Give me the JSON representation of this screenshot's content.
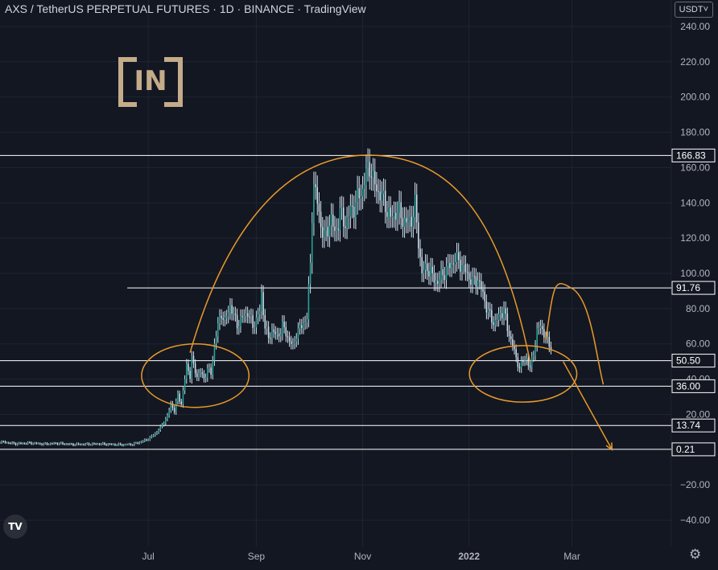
{
  "header": {
    "title": "AXS / TetherUS PERPETUAL FUTURES · 1D · BINANCE · TradingView",
    "currency_label": "USDT˅"
  },
  "logo": {
    "text": "[IN]",
    "color": "#c4ab8a"
  },
  "tv_logo": {
    "text": "TV"
  },
  "icons": {
    "settings": "gear-icon"
  },
  "colors": {
    "background": "#131722",
    "grid": "#1e2433",
    "candle": "#cfe2ef",
    "candle_up_accent": "#26a69a",
    "level_line": "#ffffff",
    "drawing": "#e89a2a",
    "axis_text": "#b2b5be"
  },
  "chart_data": {
    "type": "candlestick",
    "title": "AXS / TetherUS PERPETUAL FUTURES · 1D · BINANCE · TradingView",
    "ylim": [
      -55,
      255
    ],
    "y_ticks": [
      "240.00",
      "220.00",
      "200.00",
      "180.00",
      "160.00",
      "140.00",
      "120.00",
      "100.00",
      "80.00",
      "60.00",
      "40.00",
      "20.00",
      "−20.00",
      "−40.00"
    ],
    "y_tick_values": [
      240,
      220,
      200,
      180,
      160,
      140,
      120,
      100,
      80,
      60,
      40,
      20,
      -20,
      -40
    ],
    "x_ticks": [
      "Jul",
      "Sep",
      "Nov",
      "2022",
      "Mar"
    ],
    "x_tick_dates": [
      "2021-07-01",
      "2021-09-01",
      "2021-11-01",
      "2022-01-01",
      "2022-03-01"
    ],
    "xlim": [
      "2021-04-07",
      "2022-04-27"
    ],
    "grid": true,
    "price_levels": [
      {
        "value": 166.83,
        "label": "166.83",
        "start_date": "2021-04-07"
      },
      {
        "value": 91.76,
        "label": "91.76",
        "start_date": "2021-06-19"
      },
      {
        "value": 50.5,
        "label": "50.50",
        "start_date": "2021-04-07"
      },
      {
        "value": 36.0,
        "label": "36.00",
        "start_date": "2021-04-07"
      },
      {
        "value": 13.74,
        "label": "13.74",
        "start_date": "2021-04-07"
      },
      {
        "value": 0.21,
        "label": "0.21",
        "start_date": "2021-04-07"
      }
    ],
    "drawings": {
      "arc": {
        "start": [
          "2021-07-25",
          55
        ],
        "peak": [
          "2021-11-04",
          167
        ],
        "end": [
          "2022-02-05",
          50
        ]
      },
      "circles": [
        {
          "center": [
            "2021-07-28",
            42
          ],
          "date_radius_days": 14,
          "value_radius": 18
        },
        {
          "center": [
            "2022-02-01",
            43
          ],
          "date_radius_days": 14,
          "value_radius": 16
        }
      ],
      "projection_path": [
        [
          "2022-02-14",
          62
        ],
        [
          "2022-02-28",
          92
        ],
        [
          "2022-03-19",
          37
        ]
      ],
      "arrow_path": [
        [
          "2022-02-24",
          50
        ],
        [
          "2022-03-24",
          0
        ]
      ]
    },
    "series": [
      {
        "type": "candlestick",
        "candles": [
          [
            "2021-04-07",
            4.5
          ],
          [
            "2021-04-16",
            3.4
          ],
          [
            "2021-04-24",
            3.8
          ],
          [
            "2021-05-02",
            3.2
          ],
          [
            "2021-05-10",
            3.6
          ],
          [
            "2021-05-18",
            3.0
          ],
          [
            "2021-05-26",
            3.1
          ],
          [
            "2021-06-03",
            3.3
          ],
          [
            "2021-06-10",
            3.0
          ],
          [
            "2021-06-17",
            2.8
          ],
          [
            "2021-06-22",
            3.1
          ],
          [
            "2021-06-26",
            4.2
          ],
          [
            "2021-06-30",
            5.6
          ],
          [
            "2021-07-03",
            7.5
          ],
          [
            "2021-07-06",
            10
          ],
          [
            "2021-07-09",
            14
          ],
          [
            "2021-07-12",
            19
          ],
          [
            "2021-07-14",
            26
          ],
          [
            "2021-07-16",
            22
          ],
          [
            "2021-07-18",
            31
          ],
          [
            "2021-07-20",
            26
          ],
          [
            "2021-07-22",
            40
          ],
          [
            "2021-07-23",
            48
          ],
          [
            "2021-07-25",
            42
          ],
          [
            "2021-07-26",
            52
          ],
          [
            "2021-07-27",
            47
          ],
          [
            "2021-07-29",
            42
          ],
          [
            "2021-07-31",
            44
          ],
          [
            "2021-08-02",
            40
          ],
          [
            "2021-08-04",
            46
          ],
          [
            "2021-08-06",
            43
          ],
          [
            "2021-08-08",
            60
          ],
          [
            "2021-08-10",
            70
          ],
          [
            "2021-08-12",
            78
          ],
          [
            "2021-08-14",
            72
          ],
          [
            "2021-08-17",
            82
          ],
          [
            "2021-08-19",
            76
          ],
          [
            "2021-08-21",
            71
          ],
          [
            "2021-08-24",
            75
          ],
          [
            "2021-08-27",
            78
          ],
          [
            "2021-08-30",
            70
          ],
          [
            "2021-09-01",
            74
          ],
          [
            "2021-09-03",
            78
          ],
          [
            "2021-09-04",
            88
          ],
          [
            "2021-09-06",
            70
          ],
          [
            "2021-09-08",
            63
          ],
          [
            "2021-09-10",
            68
          ],
          [
            "2021-09-13",
            64
          ],
          [
            "2021-09-16",
            70
          ],
          [
            "2021-09-19",
            64
          ],
          [
            "2021-09-22",
            58
          ],
          [
            "2021-09-24",
            66
          ],
          [
            "2021-09-27",
            70
          ],
          [
            "2021-09-30",
            75
          ],
          [
            "2021-10-02",
            105
          ],
          [
            "2021-10-03",
            135
          ],
          [
            "2021-10-04",
            150
          ],
          [
            "2021-10-06",
            140
          ],
          [
            "2021-10-08",
            128
          ],
          [
            "2021-10-10",
            120
          ],
          [
            "2021-10-12",
            126
          ],
          [
            "2021-10-14",
            131
          ],
          [
            "2021-10-16",
            122
          ],
          [
            "2021-10-19",
            134
          ],
          [
            "2021-10-22",
            128
          ],
          [
            "2021-10-25",
            135
          ],
          [
            "2021-10-28",
            140
          ],
          [
            "2021-11-01",
            148
          ],
          [
            "2021-11-03",
            156
          ],
          [
            "2021-11-05",
            162
          ],
          [
            "2021-11-07",
            152
          ],
          [
            "2021-11-09",
            148
          ],
          [
            "2021-11-11",
            145
          ],
          [
            "2021-11-14",
            139
          ],
          [
            "2021-11-17",
            131
          ],
          [
            "2021-11-20",
            135
          ],
          [
            "2021-11-23",
            133
          ],
          [
            "2021-11-26",
            128
          ],
          [
            "2021-11-29",
            131
          ],
          [
            "2021-12-01",
            138
          ],
          [
            "2021-12-03",
            118
          ],
          [
            "2021-12-05",
            100
          ],
          [
            "2021-12-08",
            104
          ],
          [
            "2021-12-11",
            98
          ],
          [
            "2021-12-14",
            95
          ],
          [
            "2021-12-17",
            100
          ],
          [
            "2021-12-20",
            103
          ],
          [
            "2021-12-24",
            108
          ],
          [
            "2021-12-27",
            106
          ],
          [
            "2021-12-30",
            101
          ],
          [
            "2022-01-03",
            95
          ],
          [
            "2022-01-06",
            97
          ],
          [
            "2022-01-09",
            88
          ],
          [
            "2022-01-12",
            78
          ],
          [
            "2022-01-15",
            72
          ],
          [
            "2022-01-18",
            75
          ],
          [
            "2022-01-21",
            80
          ],
          [
            "2022-01-23",
            68
          ],
          [
            "2022-01-26",
            60
          ],
          [
            "2022-01-28",
            51
          ],
          [
            "2022-01-30",
            47
          ],
          [
            "2022-02-01",
            50
          ],
          [
            "2022-02-03",
            52
          ],
          [
            "2022-02-05",
            46
          ],
          [
            "2022-02-07",
            55
          ],
          [
            "2022-02-09",
            67
          ],
          [
            "2022-02-11",
            70
          ],
          [
            "2022-02-13",
            66
          ],
          [
            "2022-02-15",
            61
          ],
          [
            "2022-02-17",
            57
          ]
        ]
      }
    ]
  }
}
